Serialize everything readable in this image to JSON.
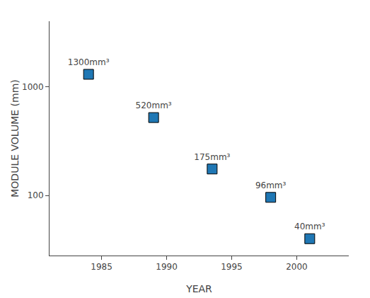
{
  "chart_data": {
    "type": "scatter",
    "title": "",
    "xlabel": "YEAR",
    "ylabel": "MODULE VOLUME (mm)",
    "x": [
      1984.0,
      1989.0,
      1993.5,
      1998.0,
      2001.0
    ],
    "values": [
      1300,
      520,
      175,
      96,
      40
    ],
    "value_labels": [
      "1300mm³",
      "520mm³",
      "175mm³",
      "96mm³",
      "40mm³"
    ],
    "data_labels": true,
    "marker": "square",
    "log": "y",
    "xlim": [
      1981,
      2004
    ],
    "ylim": [
      28,
      4000
    ],
    "xticks": [
      1985,
      1990,
      1995,
      2000
    ],
    "yticks": [
      100,
      1000
    ],
    "grid": false
  }
}
